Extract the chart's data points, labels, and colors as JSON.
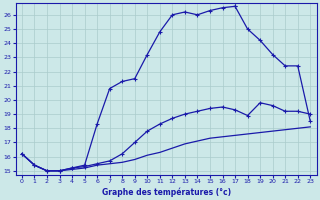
{
  "xlabel": "Graphe des températures (°c)",
  "xlim": [
    -0.5,
    23.5
  ],
  "ylim": [
    14.7,
    26.8
  ],
  "yticks": [
    15,
    16,
    17,
    18,
    19,
    20,
    21,
    22,
    23,
    24,
    25,
    26
  ],
  "xticks": [
    0,
    1,
    2,
    3,
    4,
    5,
    6,
    7,
    8,
    9,
    10,
    11,
    12,
    13,
    14,
    15,
    16,
    17,
    18,
    19,
    20,
    21,
    22,
    23
  ],
  "background_color": "#cce8e8",
  "grid_color": "#aacccc",
  "line_color": "#1a1aaa",
  "curve1_x": [
    0,
    1,
    2,
    3,
    4,
    5,
    6,
    7,
    8,
    9,
    10,
    11,
    12,
    13,
    14,
    15,
    16,
    17,
    18,
    19,
    20,
    21,
    22,
    23
  ],
  "curve1_y": [
    16.2,
    15.4,
    15.0,
    15.0,
    15.1,
    15.2,
    15.4,
    15.5,
    15.6,
    15.8,
    16.1,
    16.3,
    16.6,
    16.9,
    17.1,
    17.3,
    17.4,
    17.5,
    17.6,
    17.7,
    17.8,
    17.9,
    18.0,
    18.1
  ],
  "curve2_x": [
    0,
    1,
    2,
    3,
    4,
    5,
    6,
    7,
    8,
    9,
    10,
    11,
    12,
    13,
    14,
    15,
    16,
    17,
    18,
    19,
    20,
    21,
    22,
    23
  ],
  "curve2_y": [
    16.2,
    15.4,
    15.0,
    15.0,
    15.2,
    15.3,
    15.5,
    15.7,
    16.2,
    17.0,
    17.8,
    18.3,
    18.7,
    19.0,
    19.2,
    19.4,
    19.5,
    19.3,
    18.9,
    19.8,
    19.6,
    19.2,
    19.2,
    19.0
  ],
  "curve3_x": [
    0,
    1,
    2,
    3,
    4,
    5,
    6,
    7,
    8,
    9,
    10,
    11,
    12,
    13,
    14,
    15,
    16,
    17
  ],
  "curve3_y": [
    16.2,
    15.4,
    15.0,
    15.0,
    15.2,
    15.4,
    18.3,
    20.8,
    21.3,
    21.5,
    23.2,
    24.8,
    26.0,
    26.2,
    26.0,
    26.3,
    26.5,
    26.6
  ],
  "curve4_x": [
    17,
    18,
    19,
    20,
    21,
    22,
    23
  ],
  "curve4_y": [
    26.6,
    25.0,
    24.2,
    23.2,
    22.4,
    22.4,
    18.5
  ]
}
